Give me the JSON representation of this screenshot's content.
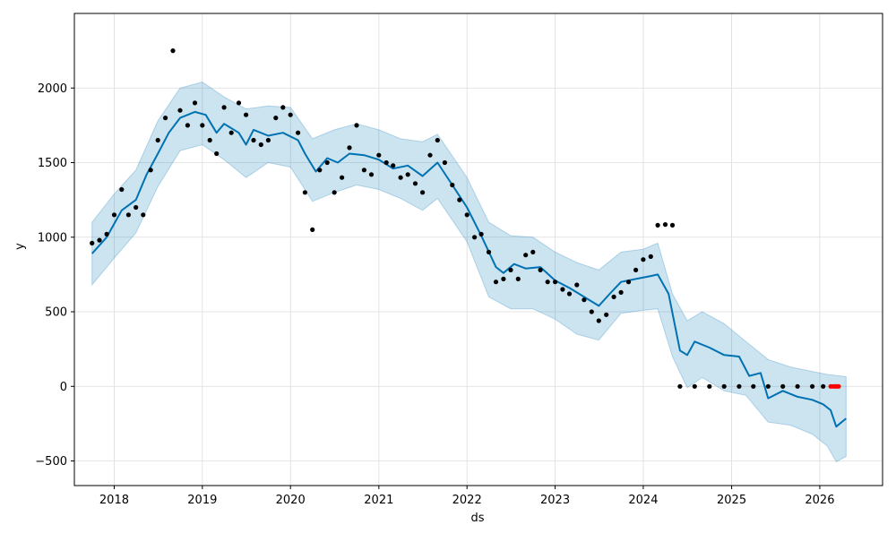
{
  "chart_data": {
    "type": "scatter",
    "title": "",
    "xlabel": "ds",
    "ylabel": "y",
    "xlim": [
      "2017-07-20",
      "2026-09-18"
    ],
    "ylim": [
      -665,
      2500
    ],
    "grid": true,
    "legend": "none",
    "x_ticks": [
      "2018",
      "2019",
      "2020",
      "2021",
      "2022",
      "2023",
      "2024",
      "2025",
      "2026"
    ],
    "y_ticks": [
      -500,
      0,
      500,
      1000,
      1500,
      2000
    ],
    "colors": {
      "observed": "#000000",
      "recent_observed": "#ff0000",
      "forecast_line": "#0072b2",
      "uncertainty_band": "#0072b2"
    },
    "series": [
      {
        "name": "",
        "kind": "forecast_line",
        "points": [
          [
            "2017-10-01",
            890
          ],
          [
            "2017-12-01",
            1000
          ],
          [
            "2018-02-01",
            1180
          ],
          [
            "2018-04-01",
            1250
          ],
          [
            "2018-05-15",
            1420
          ],
          [
            "2018-07-01",
            1560
          ],
          [
            "2018-08-15",
            1700
          ],
          [
            "2018-10-01",
            1800
          ],
          [
            "2018-12-01",
            1840
          ],
          [
            "2019-01-15",
            1820
          ],
          [
            "2019-03-01",
            1700
          ],
          [
            "2019-04-01",
            1760
          ],
          [
            "2019-06-01",
            1700
          ],
          [
            "2019-07-01",
            1620
          ],
          [
            "2019-08-01",
            1720
          ],
          [
            "2019-10-01",
            1680
          ],
          [
            "2019-12-01",
            1700
          ],
          [
            "2020-02-01",
            1650
          ],
          [
            "2020-03-01",
            1560
          ],
          [
            "2020-04-15",
            1440
          ],
          [
            "2020-06-01",
            1530
          ],
          [
            "2020-07-15",
            1500
          ],
          [
            "2020-09-01",
            1560
          ],
          [
            "2020-11-01",
            1550
          ],
          [
            "2021-01-01",
            1520
          ],
          [
            "2021-03-01",
            1460
          ],
          [
            "2021-05-01",
            1480
          ],
          [
            "2021-07-01",
            1410
          ],
          [
            "2021-09-01",
            1500
          ],
          [
            "2021-11-01",
            1350
          ],
          [
            "2022-01-01",
            1200
          ],
          [
            "2022-03-01",
            1010
          ],
          [
            "2022-05-01",
            800
          ],
          [
            "2022-06-01",
            760
          ],
          [
            "2022-07-15",
            820
          ],
          [
            "2022-09-01",
            790
          ],
          [
            "2022-11-01",
            800
          ],
          [
            "2023-01-01",
            710
          ],
          [
            "2023-03-01",
            660
          ],
          [
            "2023-05-01",
            600
          ],
          [
            "2023-07-01",
            540
          ],
          [
            "2023-08-15",
            620
          ],
          [
            "2023-10-01",
            700
          ],
          [
            "2023-12-01",
            720
          ],
          [
            "2024-02-01",
            740
          ],
          [
            "2024-03-01",
            750
          ],
          [
            "2024-04-15",
            620
          ],
          [
            "2024-06-01",
            240
          ],
          [
            "2024-07-01",
            210
          ],
          [
            "2024-08-01",
            300
          ],
          [
            "2024-10-01",
            260
          ],
          [
            "2024-12-01",
            210
          ],
          [
            "2025-02-01",
            200
          ],
          [
            "2025-03-15",
            70
          ],
          [
            "2025-05-01",
            90
          ],
          [
            "2025-06-01",
            -80
          ],
          [
            "2025-08-01",
            -30
          ],
          [
            "2025-10-01",
            -70
          ],
          [
            "2025-12-01",
            -90
          ],
          [
            "2026-01-15",
            -120
          ],
          [
            "2026-02-15",
            -160
          ],
          [
            "2026-03-10",
            -270
          ],
          [
            "2026-04-20",
            -215
          ]
        ],
        "upper": [
          [
            "2017-10-01",
            1100
          ],
          [
            "2018-01-01",
            1290
          ],
          [
            "2018-04-01",
            1450
          ],
          [
            "2018-07-01",
            1780
          ],
          [
            "2018-10-01",
            2000
          ],
          [
            "2019-01-01",
            2040
          ],
          [
            "2019-04-01",
            1940
          ],
          [
            "2019-07-01",
            1860
          ],
          [
            "2019-10-01",
            1880
          ],
          [
            "2020-01-01",
            1870
          ],
          [
            "2020-04-01",
            1660
          ],
          [
            "2020-07-01",
            1720
          ],
          [
            "2020-10-01",
            1760
          ],
          [
            "2021-01-01",
            1720
          ],
          [
            "2021-04-01",
            1660
          ],
          [
            "2021-07-01",
            1640
          ],
          [
            "2021-09-01",
            1690
          ],
          [
            "2022-01-01",
            1400
          ],
          [
            "2022-04-01",
            1100
          ],
          [
            "2022-07-01",
            1010
          ],
          [
            "2022-10-01",
            1000
          ],
          [
            "2023-01-01",
            900
          ],
          [
            "2023-04-01",
            830
          ],
          [
            "2023-07-01",
            780
          ],
          [
            "2023-10-01",
            900
          ],
          [
            "2024-01-01",
            920
          ],
          [
            "2024-03-01",
            960
          ],
          [
            "2024-05-01",
            620
          ],
          [
            "2024-07-01",
            440
          ],
          [
            "2024-09-01",
            500
          ],
          [
            "2024-12-01",
            420
          ],
          [
            "2025-03-01",
            300
          ],
          [
            "2025-06-01",
            180
          ],
          [
            "2025-09-01",
            130
          ],
          [
            "2025-12-01",
            100
          ],
          [
            "2026-02-01",
            80
          ],
          [
            "2026-04-20",
            65
          ]
        ],
        "lower": [
          [
            "2017-10-01",
            680
          ],
          [
            "2018-01-01",
            860
          ],
          [
            "2018-04-01",
            1030
          ],
          [
            "2018-07-01",
            1340
          ],
          [
            "2018-10-01",
            1580
          ],
          [
            "2019-01-01",
            1620
          ],
          [
            "2019-04-01",
            1520
          ],
          [
            "2019-07-01",
            1400
          ],
          [
            "2019-10-01",
            1500
          ],
          [
            "2020-01-01",
            1470
          ],
          [
            "2020-04-01",
            1240
          ],
          [
            "2020-07-01",
            1300
          ],
          [
            "2020-10-01",
            1350
          ],
          [
            "2021-01-01",
            1320
          ],
          [
            "2021-04-01",
            1260
          ],
          [
            "2021-07-01",
            1180
          ],
          [
            "2021-09-01",
            1260
          ],
          [
            "2022-01-01",
            970
          ],
          [
            "2022-04-01",
            600
          ],
          [
            "2022-07-01",
            520
          ],
          [
            "2022-10-01",
            520
          ],
          [
            "2023-01-01",
            450
          ],
          [
            "2023-04-01",
            350
          ],
          [
            "2023-07-01",
            310
          ],
          [
            "2023-10-01",
            490
          ],
          [
            "2024-01-01",
            510
          ],
          [
            "2024-03-01",
            520
          ],
          [
            "2024-05-01",
            200
          ],
          [
            "2024-07-01",
            -10
          ],
          [
            "2024-09-01",
            60
          ],
          [
            "2024-12-01",
            -30
          ],
          [
            "2025-03-01",
            -60
          ],
          [
            "2025-06-01",
            -240
          ],
          [
            "2025-09-01",
            -260
          ],
          [
            "2025-12-01",
            -320
          ],
          [
            "2026-02-01",
            -400
          ],
          [
            "2026-03-10",
            -505
          ],
          [
            "2026-04-20",
            -470
          ]
        ]
      },
      {
        "name": "",
        "kind": "observed",
        "points": [
          [
            "2017-10-01",
            960
          ],
          [
            "2017-11-01",
            980
          ],
          [
            "2017-12-01",
            1020
          ],
          [
            "2018-01-01",
            1150
          ],
          [
            "2018-02-01",
            1320
          ],
          [
            "2018-03-01",
            1150
          ],
          [
            "2018-04-01",
            1200
          ],
          [
            "2018-05-01",
            1150
          ],
          [
            "2018-06-01",
            1450
          ],
          [
            "2018-07-01",
            1650
          ],
          [
            "2018-08-01",
            1800
          ],
          [
            "2018-09-01",
            2250
          ],
          [
            "2018-10-01",
            1850
          ],
          [
            "2018-11-01",
            1750
          ],
          [
            "2018-12-01",
            1900
          ],
          [
            "2019-01-01",
            1750
          ],
          [
            "2019-02-01",
            1650
          ],
          [
            "2019-03-01",
            1560
          ],
          [
            "2019-04-01",
            1870
          ],
          [
            "2019-05-01",
            1700
          ],
          [
            "2019-06-01",
            1900
          ],
          [
            "2019-07-01",
            1820
          ],
          [
            "2019-08-01",
            1650
          ],
          [
            "2019-09-01",
            1620
          ],
          [
            "2019-10-01",
            1650
          ],
          [
            "2019-11-01",
            1800
          ],
          [
            "2019-12-01",
            1870
          ],
          [
            "2020-01-01",
            1820
          ],
          [
            "2020-02-01",
            1700
          ],
          [
            "2020-03-01",
            1300
          ],
          [
            "2020-04-01",
            1050
          ],
          [
            "2020-05-01",
            1450
          ],
          [
            "2020-06-01",
            1500
          ],
          [
            "2020-07-01",
            1300
          ],
          [
            "2020-08-01",
            1400
          ],
          [
            "2020-09-01",
            1600
          ],
          [
            "2020-10-01",
            1750
          ],
          [
            "2020-11-01",
            1450
          ],
          [
            "2020-12-01",
            1420
          ],
          [
            "2021-01-01",
            1550
          ],
          [
            "2021-02-01",
            1500
          ],
          [
            "2021-03-01",
            1480
          ],
          [
            "2021-04-01",
            1400
          ],
          [
            "2021-05-01",
            1420
          ],
          [
            "2021-06-01",
            1360
          ],
          [
            "2021-07-01",
            1300
          ],
          [
            "2021-08-01",
            1550
          ],
          [
            "2021-09-01",
            1650
          ],
          [
            "2021-10-01",
            1500
          ],
          [
            "2021-11-01",
            1350
          ],
          [
            "2021-12-01",
            1250
          ],
          [
            "2022-01-01",
            1150
          ],
          [
            "2022-02-01",
            1000
          ],
          [
            "2022-03-01",
            1020
          ],
          [
            "2022-04-01",
            900
          ],
          [
            "2022-05-01",
            700
          ],
          [
            "2022-06-01",
            720
          ],
          [
            "2022-07-01",
            780
          ],
          [
            "2022-08-01",
            720
          ],
          [
            "2022-09-01",
            880
          ],
          [
            "2022-10-01",
            900
          ],
          [
            "2022-11-01",
            780
          ],
          [
            "2022-12-01",
            700
          ],
          [
            "2023-01-01",
            700
          ],
          [
            "2023-02-01",
            650
          ],
          [
            "2023-03-01",
            620
          ],
          [
            "2023-04-01",
            680
          ],
          [
            "2023-05-01",
            580
          ],
          [
            "2023-06-01",
            500
          ],
          [
            "2023-07-01",
            440
          ],
          [
            "2023-08-01",
            480
          ],
          [
            "2023-09-01",
            600
          ],
          [
            "2023-10-01",
            630
          ],
          [
            "2023-11-01",
            700
          ],
          [
            "2023-12-01",
            780
          ],
          [
            "2024-01-01",
            850
          ],
          [
            "2024-02-01",
            870
          ],
          [
            "2024-03-01",
            1080
          ],
          [
            "2024-04-01",
            1085
          ],
          [
            "2024-05-01",
            1080
          ],
          [
            "2024-06-01",
            0
          ],
          [
            "2024-08-01",
            0
          ],
          [
            "2024-10-01",
            0
          ],
          [
            "2024-12-01",
            0
          ],
          [
            "2025-02-01",
            0
          ],
          [
            "2025-04-01",
            0
          ],
          [
            "2025-06-01",
            0
          ],
          [
            "2025-08-01",
            0
          ],
          [
            "2025-10-01",
            0
          ],
          [
            "2025-12-01",
            0
          ],
          [
            "2026-01-15",
            0
          ]
        ]
      },
      {
        "name": "",
        "kind": "recent_observed",
        "points": [
          [
            "2026-02-15",
            0
          ],
          [
            "2026-02-25",
            0
          ],
          [
            "2026-03-05",
            0
          ],
          [
            "2026-03-12",
            0
          ],
          [
            "2026-03-20",
            0
          ]
        ]
      }
    ]
  }
}
